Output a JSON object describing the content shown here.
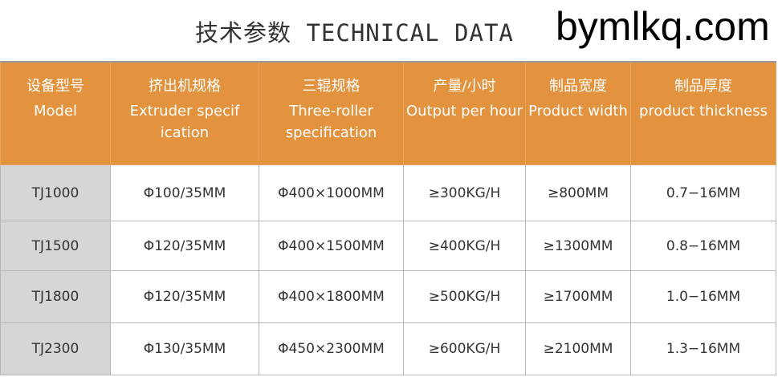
{
  "title": "技术参数 TECHNICAL DATA",
  "headers": [
    {
      "zh": "设备型号",
      "en": "Model"
    },
    {
      "zh": "挤出机规格",
      "en": "Extruder specif ication"
    },
    {
      "zh": "三辊规格",
      "en": "Three-roller specification"
    },
    {
      "zh": "产量/小时",
      "en": "Output per hour"
    },
    {
      "zh": "制品宽度",
      "en": "Product width"
    },
    {
      "zh": "制品厚度",
      "en": "product thickness"
    }
  ],
  "rows": [
    [
      "TJ1000",
      "Φ100/35MM",
      "Φ400×1000MM",
      "≥300KG/H",
      "≥800MM",
      "0.7−16MM"
    ],
    [
      "TJ1500",
      "Φ120/35MM",
      "Φ400×1500MM",
      "≥400KG/H",
      "≥1300MM",
      "0.8−16MM"
    ],
    [
      "TJ1800",
      "Φ120/35MM",
      "Φ400×1800MM",
      "≥500KG/H",
      "≥1700MM",
      "1.0−16MM"
    ],
    [
      "TJ2300",
      "Φ130/35MM",
      "Φ450×2300MM",
      "≥600KG/H",
      "≥2100MM",
      "1.3−16MM"
    ]
  ],
  "watermark": "bymlkq.com"
}
